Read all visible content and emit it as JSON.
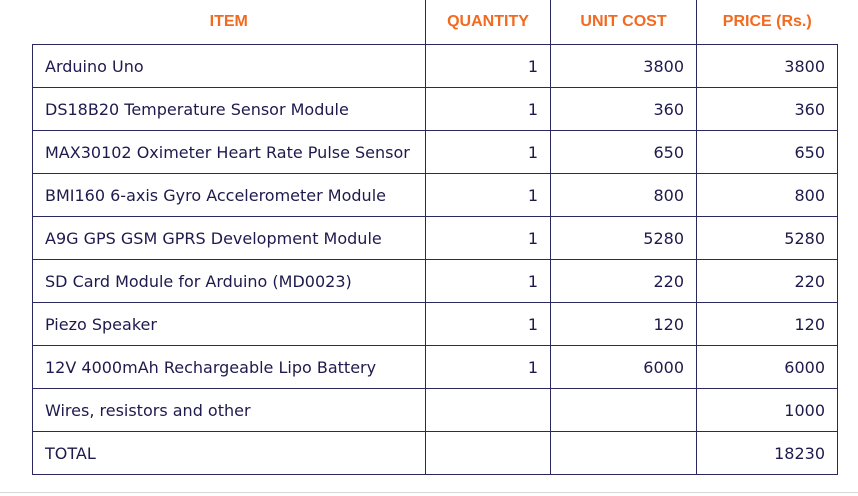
{
  "headers": {
    "item": "ITEM",
    "quantity": "QUANTITY",
    "unit_cost": "UNIT COST",
    "price": "PRICE (Rs.)"
  },
  "rows": [
    {
      "item": " Arduino Uno",
      "quantity": "1",
      "unit_cost": "3800",
      "price": "3800"
    },
    {
      "item": "DS18B20 Temperature Sensor Module",
      "quantity": "1",
      "unit_cost": "360",
      "price": "360"
    },
    {
      "item": "MAX30102 Oximeter Heart Rate Pulse Sensor",
      "quantity": "1",
      "unit_cost": "650",
      "price": "650"
    },
    {
      "item": "BMI160 6-axis Gyro Accelerometer Module",
      "quantity": "1",
      "unit_cost": "800",
      "price": "800"
    },
    {
      "item": "A9G GPS GSM GPRS Development Module",
      "quantity": "1",
      "unit_cost": "5280",
      "price": "5280"
    },
    {
      "item": "SD Card Module for Arduino (MD0023)",
      "quantity": "1",
      "unit_cost": "220",
      "price": "220"
    },
    {
      "item": "Piezo Speaker",
      "quantity": "1",
      "unit_cost": "120",
      "price": "120"
    },
    {
      "item": "12V 4000mAh Rechargeable Lipo Battery",
      "quantity": "1",
      "unit_cost": "6000",
      "price": "6000"
    },
    {
      "item": "Wires, resistors and other",
      "quantity": "",
      "unit_cost": "",
      "price": "1000"
    },
    {
      "item": "TOTAL",
      "quantity": "",
      "unit_cost": "",
      "price": "18230"
    }
  ],
  "colors": {
    "header_text": "#f26a21",
    "body_text": "#1f1a4d",
    "border": "#2b2860"
  }
}
